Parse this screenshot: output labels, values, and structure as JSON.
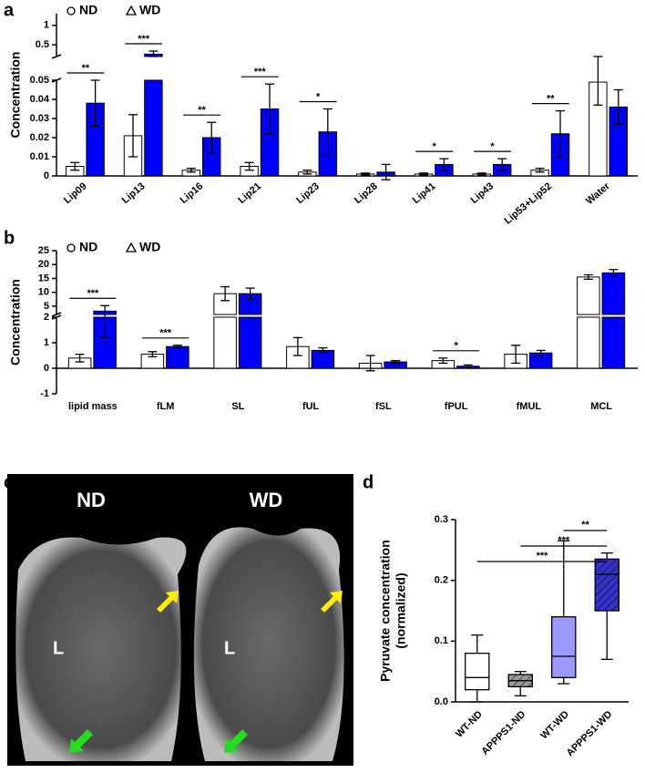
{
  "panel_labels": [
    "a",
    "b",
    "c",
    "d"
  ],
  "chart_data": [
    {
      "type": "bar",
      "ylabel": "Concentration",
      "categories": [
        "Lip09",
        "Lip13",
        "Lip16",
        "Lip21",
        "Lip23",
        "Lip28",
        "Lip41",
        "Lip43",
        "Lip53+Lip52",
        "Water"
      ],
      "series": [
        {
          "name": "ND",
          "color": "#ffffff",
          "marker": "circle",
          "values": [
            0.005,
            0.021,
            0.003,
            0.005,
            0.002,
            0.001,
            0.001,
            0.001,
            0.003,
            0.049
          ],
          "errors": [
            0.002,
            0.011,
            0.001,
            0.002,
            0.001,
            0.0005,
            0.0005,
            0.0005,
            0.001,
            0.012
          ]
        },
        {
          "name": "WD",
          "color": "#0000ff",
          "marker": "triangle",
          "values": [
            0.038,
            0.26,
            0.02,
            0.035,
            0.023,
            0.002,
            0.006,
            0.006,
            0.022,
            0.036
          ],
          "errors": [
            0.012,
            0.08,
            0.008,
            0.013,
            0.012,
            0.004,
            0.003,
            0.003,
            0.012,
            0.009
          ]
        }
      ],
      "segments": [
        {
          "ylim": [
            0,
            0.05
          ],
          "yticks": [
            0,
            0.01,
            0.02,
            0.03,
            0.04,
            0.05
          ]
        },
        {
          "ylim": [
            0.2,
            1.3
          ],
          "yticks": [
            0.5,
            1
          ]
        }
      ],
      "significance": [
        {
          "label": "**",
          "category": 0
        },
        {
          "label": "***",
          "category": 1
        },
        {
          "label": "**",
          "category": 2
        },
        {
          "label": "***",
          "category": 3
        },
        {
          "label": "*",
          "category": 4
        },
        {
          "label": "*",
          "category": 6
        },
        {
          "label": "*",
          "category": 7
        },
        {
          "label": "**",
          "category": 8
        }
      ]
    },
    {
      "type": "bar",
      "ylabel": "Concentration",
      "categories": [
        "lipid mass",
        "fLM",
        "SL",
        "fUL",
        "fSL",
        "fPUL",
        "fMUL",
        "MCL"
      ],
      "series": [
        {
          "name": "ND",
          "color": "#ffffff",
          "marker": "circle",
          "values": [
            0.4,
            0.55,
            9.5,
            0.85,
            0.2,
            0.3,
            0.55,
            15.5
          ],
          "errors": [
            0.15,
            0.1,
            2.5,
            0.35,
            0.3,
            0.1,
            0.35,
            0.8
          ]
        },
        {
          "name": "WD",
          "color": "#0000ff",
          "marker": "triangle",
          "values": [
            3.2,
            0.85,
            9.5,
            0.7,
            0.25,
            0.08,
            0.6,
            17
          ],
          "errors": [
            2,
            0.05,
            2,
            0.1,
            0.05,
            0.05,
            0.1,
            1.2
          ]
        }
      ],
      "segments": [
        {
          "ylim": [
            -1,
            2
          ],
          "yticks": [
            -1,
            0,
            1,
            2
          ]
        },
        {
          "ylim": [
            2,
            25
          ],
          "yticks": [
            5,
            10,
            15,
            20,
            25
          ]
        }
      ],
      "significance": [
        {
          "label": "***",
          "category": 0
        },
        {
          "label": "***",
          "category": 1
        },
        {
          "label": "*",
          "category": 5
        }
      ]
    },
    {
      "type": "box",
      "ylabel": [
        "Pyruvate concentration",
        "(normalized)"
      ],
      "categories": [
        "WT-ND",
        "APPPS1-ND",
        "WT-WD",
        "APPPS1-WD"
      ],
      "boxes": [
        {
          "min": 0.0,
          "q1": 0.02,
          "median": 0.04,
          "q3": 0.08,
          "max": 0.11
        },
        {
          "min": 0.01,
          "q1": 0.025,
          "median": 0.035,
          "q3": 0.045,
          "max": 0.05
        },
        {
          "min": 0.03,
          "q1": 0.04,
          "median": 0.075,
          "q3": 0.14,
          "max": 0.265
        },
        {
          "min": 0.07,
          "q1": 0.15,
          "median": 0.21,
          "q3": 0.235,
          "max": 0.245
        }
      ],
      "colors": [
        "#ffffff",
        "#9a9a9a",
        "#9999ff",
        "#3333cc"
      ],
      "hatch": [
        false,
        true,
        false,
        true
      ],
      "ylim": [
        0,
        0.3
      ],
      "yticks": [
        {
          "value": 0,
          "label": "0.0"
        },
        0.1,
        0.2,
        0.3
      ],
      "significance": [
        {
          "label": "**",
          "from": 2,
          "to": 3
        },
        {
          "label": "***",
          "from": 1,
          "to": 3
        },
        {
          "label": "***",
          "from": 0,
          "to": 3
        }
      ]
    }
  ],
  "mri": {
    "titles": [
      "ND",
      "WD"
    ],
    "marker": "L"
  }
}
